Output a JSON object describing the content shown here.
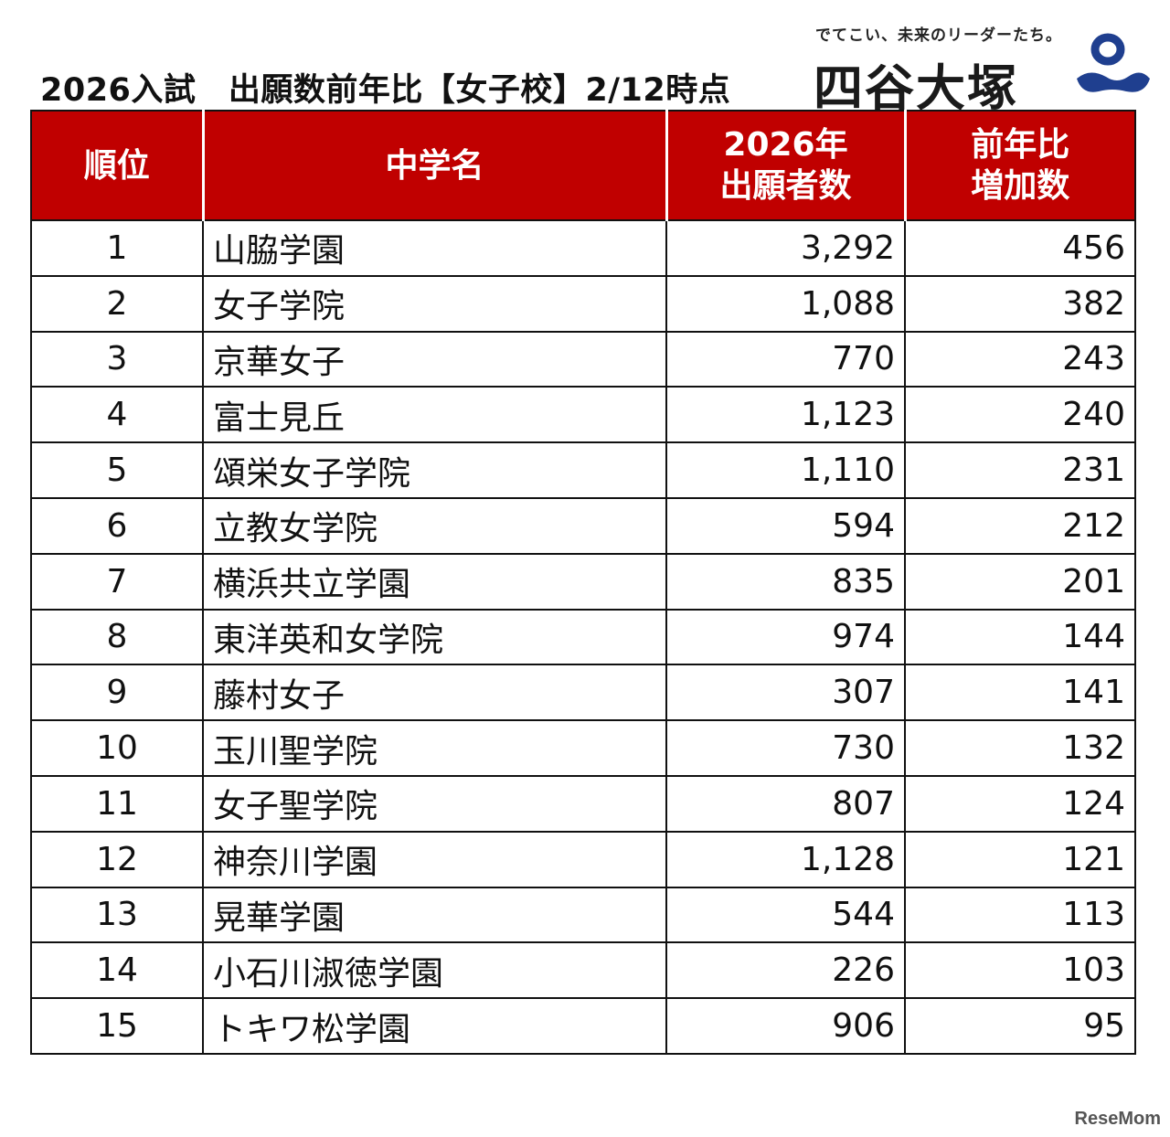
{
  "header": {
    "title": "2026入試　出願数前年比【女子校】2/12時点",
    "tagline": "でてこい、未来のリーダーたち。",
    "brand": "四谷大塚"
  },
  "table": {
    "columns": [
      "順位",
      "中学名",
      "2026年\n出願者数",
      "前年比\n増加数"
    ],
    "rows": [
      {
        "rank": "1",
        "name": "山脇学園",
        "applicants": "3,292",
        "increase": "456"
      },
      {
        "rank": "2",
        "name": "女子学院",
        "applicants": "1,088",
        "increase": "382"
      },
      {
        "rank": "3",
        "name": "京華女子",
        "applicants": "770",
        "increase": "243"
      },
      {
        "rank": "4",
        "name": "富士見丘",
        "applicants": "1,123",
        "increase": "240"
      },
      {
        "rank": "5",
        "name": "頌栄女子学院",
        "applicants": "1,110",
        "increase": "231"
      },
      {
        "rank": "6",
        "name": "立教女学院",
        "applicants": "594",
        "increase": "212"
      },
      {
        "rank": "7",
        "name": "横浜共立学園",
        "applicants": "835",
        "increase": "201"
      },
      {
        "rank": "8",
        "name": "東洋英和女学院",
        "applicants": "974",
        "increase": "144"
      },
      {
        "rank": "9",
        "name": "藤村女子",
        "applicants": "307",
        "increase": "141"
      },
      {
        "rank": "10",
        "name": "玉川聖学院",
        "applicants": "730",
        "increase": "132"
      },
      {
        "rank": "11",
        "name": "女子聖学院",
        "applicants": "807",
        "increase": "124"
      },
      {
        "rank": "12",
        "name": "神奈川学園",
        "applicants": "1,128",
        "increase": "121"
      },
      {
        "rank": "13",
        "name": "晃華学園",
        "applicants": "544",
        "increase": "113"
      },
      {
        "rank": "14",
        "name": "小石川淑徳学園",
        "applicants": "226",
        "increase": "103"
      },
      {
        "rank": "15",
        "name": "トキワ松学園",
        "applicants": "906",
        "increase": "95"
      }
    ]
  },
  "watermark": "ReseMom",
  "colors": {
    "header_bg": "#c00000",
    "header_text": "#ffffff",
    "logo_mark": "#1f3f8f"
  }
}
